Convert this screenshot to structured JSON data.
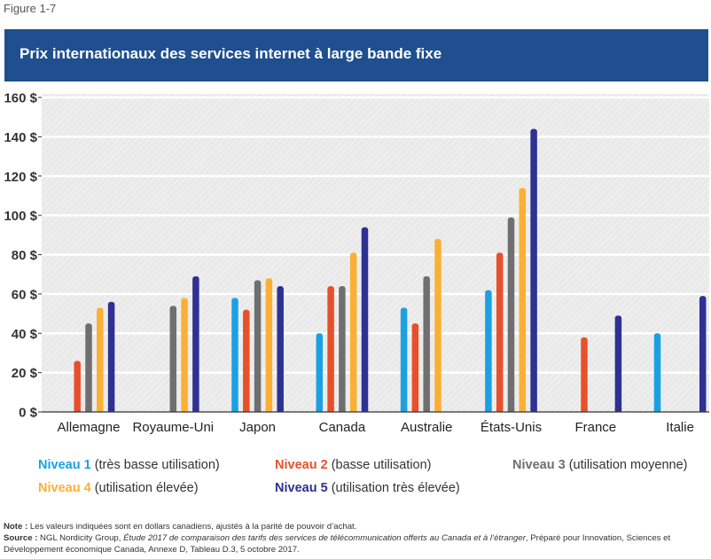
{
  "figure_label": "Figure 1-7",
  "chart_data": {
    "type": "bar",
    "title": "Prix internationaux des services internet à large bande fixe",
    "categories": [
      "Allemagne",
      "Royaume-Uni",
      "Japon",
      "Canada",
      "Australie",
      "États-Unis",
      "France",
      "Italie"
    ],
    "y_ticks": [
      "0 $",
      "20 $",
      "40 $",
      "60 $",
      "80 $",
      "100 $",
      "120 $",
      "140 $",
      "160 $"
    ],
    "ylim": [
      0,
      160
    ],
    "grid": true,
    "legend_position": "bottom",
    "series": [
      {
        "name": "Niveau 1",
        "desc": "(très basse utilisation)",
        "color": "#1ba1e2",
        "values": [
          null,
          null,
          58,
          40,
          53,
          62,
          null,
          40
        ]
      },
      {
        "name": "Niveau 2",
        "desc": "(basse utilisation)",
        "color": "#e8502a",
        "values": [
          26,
          null,
          52,
          64,
          45,
          81,
          38,
          null
        ]
      },
      {
        "name": "Niveau 3",
        "desc": "(utilisation moyenne)",
        "color": "#6f6f6f",
        "values": [
          45,
          54,
          67,
          64,
          69,
          99,
          null,
          null
        ]
      },
      {
        "name": "Niveau 4",
        "desc": "(utilisation élevée)",
        "color": "#fbb034",
        "values": [
          53,
          58,
          68,
          81,
          88,
          114,
          null,
          null
        ]
      },
      {
        "name": "Niveau 5",
        "desc": "(utilisation très élevée)",
        "color": "#2e3192",
        "values": [
          56,
          69,
          64,
          94,
          null,
          144,
          49,
          59
        ]
      }
    ]
  },
  "notes": {
    "note_label": "Note :",
    "note_text": " Les valeurs indiquées sont en dollars canadiens, ajustés à la parité de pouvoir d’achat.",
    "source_label": "Source :",
    "source_pre": " NGL Nordicity Group, ",
    "source_italic": "Étude 2017 de comparaison des tarifs des services de télécommunication offerts au Canada et à l’étranger",
    "source_post": ", Préparé pour Innovation, Sciences et Développement économique Canada, Annexe D, Tableau D.3, 5 octobre 2017."
  }
}
